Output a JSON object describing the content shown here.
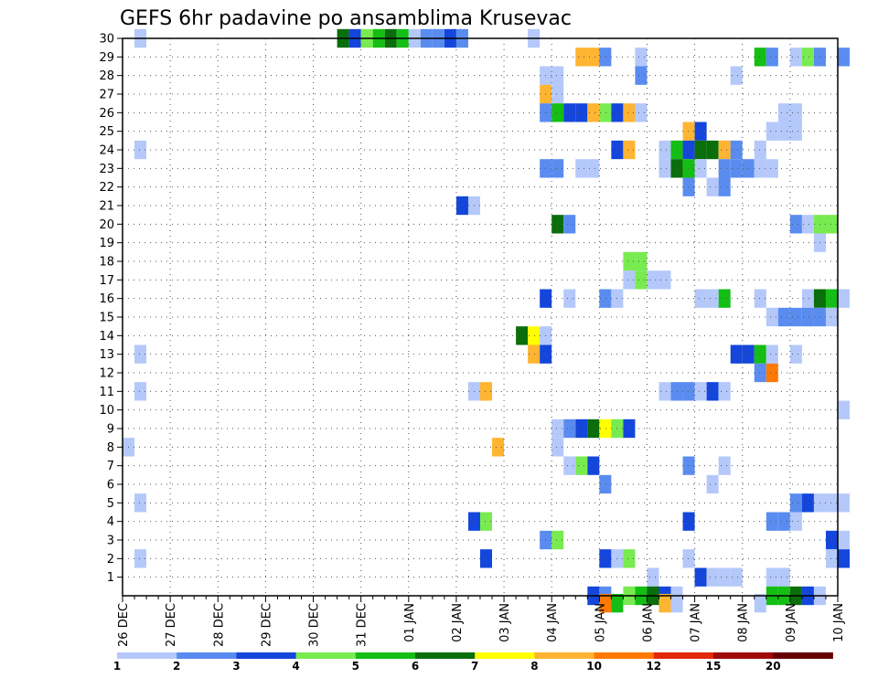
{
  "chart_data": {
    "type": "heatmap",
    "title": "GEFS 6hr padavine po ansamblima Krusevac",
    "y_tick_labels": [
      "1",
      "2",
      "3",
      "4",
      "5",
      "6",
      "7",
      "8",
      "9",
      "10",
      "11",
      "12",
      "13",
      "14",
      "15",
      "16",
      "17",
      "18",
      "19",
      "20",
      "21",
      "22",
      "23",
      "24",
      "25",
      "26",
      "27",
      "28",
      "29",
      "30"
    ],
    "x_tick_labels": [
      "26 DEC",
      "27 DEC",
      "28 DEC",
      "29 DEC",
      "30 DEC",
      "31 DEC",
      "01 JAN",
      "02 JAN",
      "03 JAN",
      "04 JAN",
      "05 JAN",
      "06 JAN",
      "07 JAN",
      "08 JAN",
      "09 JAN",
      "10 JAN"
    ],
    "members_range": [
      0,
      30
    ],
    "grid": true,
    "legend": {
      "position": "bottom",
      "thresholds": [
        1,
        2,
        3,
        4,
        5,
        6,
        7,
        8,
        10,
        12,
        15,
        20
      ],
      "tick_labels": [
        "1",
        "2",
        "3",
        "4",
        "5",
        "6",
        "7",
        "8",
        "10",
        "12",
        "15",
        "20"
      ],
      "colors": [
        "#b4c8fa",
        "#5a8cf0",
        "#1446dc",
        "#78eb50",
        "#14be14",
        "#0a6e0a",
        "#ffff00",
        "#ffb432",
        "#ff7800",
        "#e1280a",
        "#a00a0a",
        "#640000"
      ]
    },
    "cells_format": "[member, day_index_from_26_DEC, precipitation_mm]",
    "cells": [
      [
        30,
        0.25,
        1
      ],
      [
        30,
        4.5,
        6
      ],
      [
        30,
        4.75,
        3
      ],
      [
        30,
        5.0,
        4
      ],
      [
        30,
        5.25,
        5
      ],
      [
        30,
        5.5,
        6
      ],
      [
        30,
        5.75,
        5
      ],
      [
        30,
        6.0,
        1
      ],
      [
        30,
        6.25,
        2
      ],
      [
        30,
        6.5,
        2
      ],
      [
        30,
        6.75,
        3
      ],
      [
        30,
        7.0,
        2
      ],
      [
        30,
        8.5,
        1
      ],
      [
        29,
        9.5,
        9
      ],
      [
        29,
        9.75,
        9
      ],
      [
        29,
        10.0,
        2
      ],
      [
        29,
        10.75,
        1
      ],
      [
        29,
        13.25,
        5
      ],
      [
        29,
        13.5,
        2
      ],
      [
        29,
        14.0,
        1
      ],
      [
        29,
        14.25,
        4
      ],
      [
        29,
        14.5,
        2
      ],
      [
        29,
        15.0,
        2
      ],
      [
        28,
        8.75,
        1
      ],
      [
        28,
        9.0,
        1
      ],
      [
        28,
        10.75,
        2
      ],
      [
        28,
        12.75,
        1
      ],
      [
        27,
        8.75,
        8
      ],
      [
        27,
        9.0,
        1
      ],
      [
        26,
        8.75,
        2
      ],
      [
        26,
        9.0,
        5
      ],
      [
        26,
        9.25,
        3
      ],
      [
        26,
        9.5,
        3
      ],
      [
        26,
        9.75,
        9
      ],
      [
        26,
        10.0,
        4
      ],
      [
        26,
        10.25,
        3
      ],
      [
        26,
        10.5,
        9
      ],
      [
        26,
        10.75,
        1
      ],
      [
        26,
        13.75,
        1
      ],
      [
        26,
        14.0,
        1
      ],
      [
        25,
        11.75,
        9
      ],
      [
        25,
        12.0,
        3
      ],
      [
        25,
        13.5,
        1
      ],
      [
        25,
        13.75,
        1
      ],
      [
        25,
        14.0,
        1
      ],
      [
        24,
        0.25,
        1
      ],
      [
        24,
        10.25,
        3
      ],
      [
        24,
        10.5,
        8
      ],
      [
        24,
        11.25,
        1
      ],
      [
        24,
        11.5,
        5
      ],
      [
        24,
        11.75,
        3
      ],
      [
        24,
        12.0,
        6
      ],
      [
        24,
        12.25,
        6
      ],
      [
        24,
        12.5,
        9
      ],
      [
        24,
        12.75,
        2
      ],
      [
        24,
        13.25,
        1
      ],
      [
        23,
        8.75,
        2
      ],
      [
        23,
        9.0,
        2
      ],
      [
        23,
        9.5,
        1
      ],
      [
        23,
        9.75,
        1
      ],
      [
        23,
        11.25,
        1
      ],
      [
        23,
        11.5,
        6
      ],
      [
        23,
        11.75,
        5
      ],
      [
        23,
        12.0,
        1
      ],
      [
        23,
        12.5,
        2
      ],
      [
        23,
        12.75,
        2
      ],
      [
        23,
        13.0,
        2
      ],
      [
        23,
        13.25,
        1
      ],
      [
        23,
        13.5,
        1
      ],
      [
        22,
        11.75,
        2
      ],
      [
        22,
        12.25,
        1
      ],
      [
        22,
        12.5,
        2
      ],
      [
        21,
        7.0,
        3
      ],
      [
        21,
        7.25,
        1
      ],
      [
        20,
        9.0,
        6
      ],
      [
        20,
        9.25,
        2
      ],
      [
        20,
        14.0,
        2
      ],
      [
        20,
        14.25,
        1
      ],
      [
        20,
        14.5,
        4
      ],
      [
        20,
        14.75,
        4
      ],
      [
        19,
        14.5,
        1
      ],
      [
        18,
        10.5,
        4
      ],
      [
        18,
        10.75,
        4
      ],
      [
        17,
        10.5,
        1
      ],
      [
        17,
        10.75,
        4
      ],
      [
        17,
        11.0,
        1
      ],
      [
        17,
        11.25,
        1
      ],
      [
        16,
        8.75,
        3
      ],
      [
        16,
        9.25,
        1
      ],
      [
        16,
        10.0,
        2
      ],
      [
        16,
        10.25,
        1
      ],
      [
        16,
        12.0,
        1
      ],
      [
        16,
        12.25,
        1
      ],
      [
        16,
        12.5,
        5
      ],
      [
        16,
        13.25,
        1
      ],
      [
        16,
        14.25,
        1
      ],
      [
        16,
        14.5,
        6
      ],
      [
        16,
        14.75,
        5
      ],
      [
        16,
        15.0,
        1
      ],
      [
        15,
        13.5,
        1
      ],
      [
        15,
        13.75,
        2
      ],
      [
        15,
        14.0,
        2
      ],
      [
        15,
        14.25,
        2
      ],
      [
        15,
        14.5,
        2
      ],
      [
        15,
        14.75,
        1
      ],
      [
        14,
        8.25,
        6
      ],
      [
        14,
        8.5,
        7
      ],
      [
        14,
        8.75,
        1
      ],
      [
        13,
        0.25,
        1
      ],
      [
        13,
        8.5,
        9
      ],
      [
        13,
        8.75,
        3
      ],
      [
        13,
        12.75,
        3
      ],
      [
        13,
        13.0,
        3
      ],
      [
        13,
        13.25,
        5
      ],
      [
        13,
        13.5,
        1
      ],
      [
        13,
        14.0,
        1
      ],
      [
        12,
        13.25,
        2
      ],
      [
        12,
        13.5,
        10
      ],
      [
        11,
        0.25,
        1
      ],
      [
        11,
        7.25,
        1
      ],
      [
        11,
        7.5,
        9
      ],
      [
        11,
        11.25,
        1
      ],
      [
        11,
        11.5,
        2
      ],
      [
        11,
        11.75,
        2
      ],
      [
        11,
        12.0,
        1
      ],
      [
        11,
        12.25,
        3
      ],
      [
        11,
        12.5,
        1
      ],
      [
        10,
        15.0,
        1
      ],
      [
        9,
        9.0,
        1
      ],
      [
        9,
        9.25,
        2
      ],
      [
        9,
        9.5,
        3
      ],
      [
        9,
        9.75,
        6
      ],
      [
        9,
        10.0,
        7
      ],
      [
        9,
        10.25,
        4
      ],
      [
        9,
        10.5,
        3
      ],
      [
        8,
        0.0,
        1
      ],
      [
        8,
        7.75,
        8
      ],
      [
        8,
        9.0,
        1
      ],
      [
        7,
        9.25,
        1
      ],
      [
        7,
        9.5,
        4
      ],
      [
        7,
        9.75,
        3
      ],
      [
        7,
        11.75,
        2
      ],
      [
        7,
        12.5,
        1
      ],
      [
        6,
        10.0,
        2
      ],
      [
        6,
        12.25,
        1
      ],
      [
        5,
        0.25,
        1
      ],
      [
        5,
        14.0,
        2
      ],
      [
        5,
        14.25,
        3
      ],
      [
        5,
        14.5,
        1
      ],
      [
        5,
        14.75,
        1
      ],
      [
        5,
        15.0,
        1
      ],
      [
        4,
        7.25,
        3
      ],
      [
        4,
        7.5,
        4
      ],
      [
        4,
        11.75,
        3
      ],
      [
        4,
        13.5,
        2
      ],
      [
        4,
        13.75,
        2
      ],
      [
        4,
        14.0,
        1
      ],
      [
        3,
        8.75,
        2
      ],
      [
        3,
        9.0,
        4
      ],
      [
        3,
        14.75,
        3
      ],
      [
        3,
        15.0,
        1
      ],
      [
        2,
        0.25,
        1
      ],
      [
        2,
        7.5,
        3
      ],
      [
        2,
        10.0,
        3
      ],
      [
        2,
        10.25,
        1
      ],
      [
        2,
        10.5,
        4
      ],
      [
        2,
        11.75,
        1
      ],
      [
        2,
        14.75,
        1
      ],
      [
        2,
        15.0,
        3
      ],
      [
        1,
        11.0,
        1
      ],
      [
        1,
        12.0,
        3
      ],
      [
        1,
        12.25,
        1
      ],
      [
        1,
        12.5,
        1
      ],
      [
        1,
        12.75,
        1
      ],
      [
        1,
        13.5,
        1
      ],
      [
        1,
        13.75,
        1
      ],
      [
        0,
        9.75,
        3
      ],
      [
        0,
        10.0,
        2
      ],
      [
        0,
        10.5,
        4
      ],
      [
        0,
        10.75,
        5
      ],
      [
        0,
        11.0,
        6
      ],
      [
        0,
        11.25,
        3
      ],
      [
        0,
        11.5,
        1
      ],
      [
        0,
        13.5,
        5
      ],
      [
        0,
        13.75,
        5
      ],
      [
        0,
        14.0,
        6
      ],
      [
        0,
        14.25,
        3
      ],
      [
        0,
        14.5,
        1
      ],
      [
        -0.4,
        10.0,
        11
      ],
      [
        -0.4,
        10.25,
        5
      ],
      [
        -0.4,
        11.25,
        8
      ],
      [
        -0.4,
        11.5,
        1
      ],
      [
        -0.4,
        13.25,
        1
      ]
    ]
  }
}
